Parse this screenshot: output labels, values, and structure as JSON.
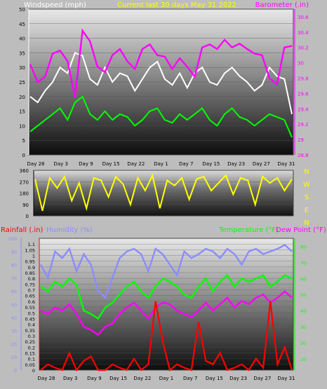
{
  "chart_data": [
    {
      "type": "line",
      "title": "Current last 30 days May 31 2022",
      "y_left_label": "Windspeed (mph)",
      "y_right_label": "Barometer (.in)",
      "x_ticks": [
        "Day 28",
        "Day 3",
        "Day 9",
        "Day 15",
        "Day 22",
        "Day 1",
        "Day 7",
        "Day 15",
        "Day 23",
        "Day 27",
        "Day 31"
      ],
      "y_left_ticks": [
        0,
        5,
        10,
        15,
        20,
        25,
        30,
        35,
        40,
        45,
        50
      ],
      "y_left_range": [
        0,
        50
      ],
      "y_right_ticks": [
        "28.8",
        "29",
        "29.2",
        "29.4",
        "29.6",
        "29.8",
        "30",
        "30.2",
        "30.4",
        "30.6"
      ],
      "y_right_range": [
        28.8,
        30.7
      ],
      "series": [
        {
          "name": "Barometer (.in)",
          "axis": "right",
          "color": "#ff00ff",
          "values": [
            29.98,
            29.75,
            29.82,
            30.12,
            30.16,
            30.02,
            29.55,
            30.42,
            30.28,
            29.95,
            29.88,
            30.1,
            30.18,
            30.02,
            29.92,
            30.18,
            30.24,
            30.1,
            30.08,
            29.92,
            30.06,
            29.95,
            29.82,
            30.2,
            30.24,
            30.18,
            30.3,
            30.2,
            30.25,
            30.18,
            30.12,
            30.1,
            29.8,
            29.72,
            30.2,
            30.22
          ]
        },
        {
          "name": "Wind gust",
          "axis": "left",
          "color": "#ffffff",
          "values": [
            20,
            18,
            22,
            25,
            30,
            28,
            35,
            34,
            26,
            24,
            30,
            25,
            28,
            27,
            22,
            26,
            30,
            32,
            26,
            24,
            28,
            23,
            28,
            30,
            25,
            24,
            28,
            30,
            27,
            25,
            22,
            24,
            30,
            27,
            26,
            14
          ]
        },
        {
          "name": "Wind speed",
          "axis": "left",
          "color": "#00ff00",
          "values": [
            8,
            10,
            12,
            14,
            16,
            12,
            18,
            20,
            14,
            12,
            15,
            12,
            14,
            13,
            10,
            12,
            15,
            16,
            12,
            11,
            14,
            12,
            14,
            16,
            12,
            10,
            14,
            16,
            13,
            12,
            10,
            12,
            14,
            13,
            12,
            6
          ]
        }
      ]
    },
    {
      "type": "line",
      "y_right_label": "N W S E N",
      "y_right_letters": [
        "N",
        "W",
        "S",
        "E",
        "N"
      ],
      "y_left_ticks": [
        0,
        90,
        180,
        270,
        360
      ],
      "y_range": [
        0,
        360
      ],
      "series": [
        {
          "name": "Wind direction",
          "color": "#ffff00",
          "values": [
            290,
            40,
            300,
            220,
            310,
            120,
            260,
            60,
            300,
            280,
            150,
            310,
            250,
            90,
            300,
            200,
            320,
            60,
            280,
            240,
            300,
            130,
            290,
            310,
            200,
            260,
            320,
            170,
            300,
            280,
            90,
            310,
            260,
            300,
            200,
            290
          ]
        }
      ]
    },
    {
      "type": "line",
      "labels": {
        "rainfall": "Rainfall (.in)",
        "humidity": "Humidity (%)",
        "temperature": "Temperature (°F)",
        "dewpoint": "Dew Point (°F)"
      },
      "x_ticks": [
        "Day 28",
        "Day 3",
        "Day 9",
        "Day 15",
        "Day 22",
        "Day 1",
        "Day 7",
        "Day 15",
        "Day 23",
        "Day 27",
        "Day 31"
      ],
      "rain_ticks": [
        "0",
        "0.05",
        "0.1",
        "0.15",
        "0.2",
        "0.25",
        "0.3",
        "0.35",
        "0.4",
        "0.45",
        "0.5",
        "0.55",
        "0.6",
        "0.65",
        "0.7",
        "0.75",
        "0.8",
        "0.85",
        "0.9",
        "0.95",
        "1",
        "1.05",
        "1.1"
      ],
      "rain_range": [
        0,
        1.15
      ],
      "humidity_ticks": [
        0,
        10,
        20,
        30,
        40,
        50,
        60,
        70,
        80,
        90,
        100
      ],
      "humidity_range": [
        0,
        100
      ],
      "temp_ticks": [
        10,
        20,
        30,
        40,
        50,
        60,
        70,
        80
      ],
      "temp_range": [
        3,
        85
      ],
      "series": [
        {
          "name": "Humidity (%)",
          "axis": "humidity",
          "color": "#8c8cff",
          "values": [
            80,
            70,
            90,
            85,
            92,
            75,
            88,
            80,
            60,
            55,
            70,
            85,
            90,
            92,
            88,
            75,
            92,
            88,
            80,
            72,
            90,
            85,
            88,
            92,
            90,
            85,
            92,
            88,
            80,
            90,
            92,
            88,
            90,
            92,
            95,
            90
          ]
        },
        {
          "name": "Temperature (°F)",
          "axis": "temp",
          "color": "#00ff00",
          "values": [
            55,
            52,
            58,
            55,
            60,
            56,
            40,
            38,
            35,
            42,
            45,
            50,
            55,
            58,
            52,
            48,
            55,
            60,
            58,
            55,
            50,
            48,
            55,
            60,
            52,
            58,
            62,
            55,
            60,
            58,
            60,
            62,
            55,
            58,
            62,
            60
          ]
        },
        {
          "name": "Dew Point (°F)",
          "axis": "temp",
          "color": "#ff00ff",
          "values": [
            40,
            38,
            42,
            40,
            44,
            38,
            30,
            28,
            25,
            30,
            32,
            38,
            42,
            45,
            40,
            35,
            42,
            45,
            44,
            40,
            38,
            36,
            40,
            45,
            40,
            44,
            48,
            42,
            46,
            44,
            48,
            50,
            45,
            48,
            52,
            48
          ]
        },
        {
          "name": "Rainfall (.in)",
          "axis": "rain",
          "color": "#ff0000",
          "values": [
            0,
            0.05,
            0.02,
            0,
            0.15,
            0,
            0.08,
            0.12,
            0,
            0,
            0.05,
            0.02,
            0,
            0.1,
            0,
            0.05,
            0.6,
            0.25,
            0,
            0.05,
            0.02,
            0,
            0.42,
            0.08,
            0.05,
            0.15,
            0,
            0.02,
            0.05,
            0,
            0.1,
            0.02,
            0.6,
            0.05,
            0.2,
            0
          ]
        }
      ]
    }
  ]
}
